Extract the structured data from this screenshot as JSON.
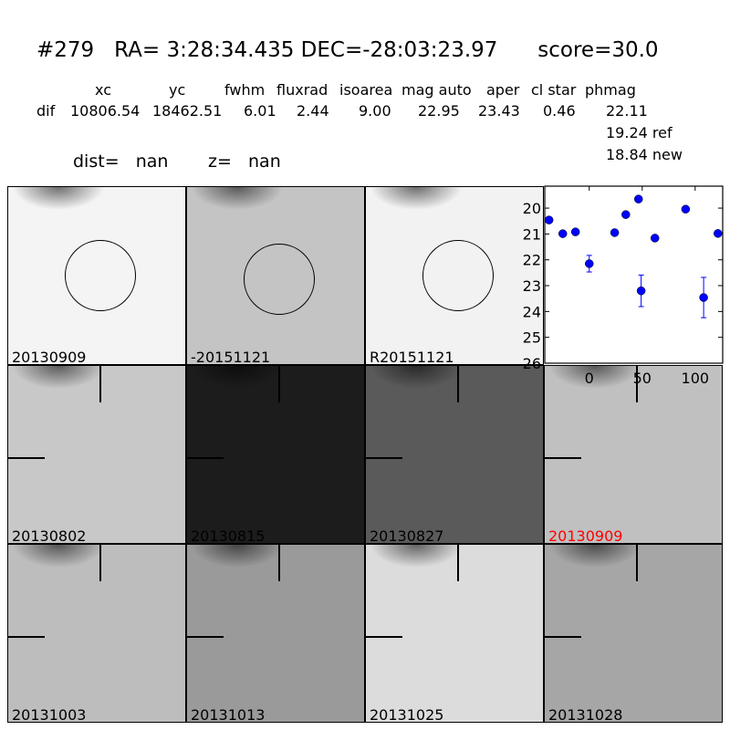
{
  "header": {
    "title": "#279   RA= 3:28:34.435 DEC=-28:03:23.97      score=30.0",
    "columns": [
      "xc",
      "yc",
      "fwhm",
      "fluxrad",
      "isoarea",
      "mag auto",
      "aper",
      "cl star",
      "phmag"
    ],
    "row_label": "dif",
    "values": [
      "10806.54",
      "18462.51",
      "6.01",
      "2.44",
      "9.00",
      "22.95",
      "23.43",
      "0.46",
      "22.11"
    ],
    "ref": "19.24 ref",
    "new": "18.84 new",
    "dist": "dist=   nan",
    "z": "z=   nan"
  },
  "stamps": [
    {
      "label": "20130909",
      "bg": "#f4f4f4",
      "circle": true
    },
    {
      "label": "-20151121",
      "bg": "#c4c4c4",
      "circle": true
    },
    {
      "label": "R20151121",
      "bg": "#f2f2f2",
      "circle": true
    },
    {
      "label": "20130802",
      "bg": "#c8c8c8",
      "crosshair": true
    },
    {
      "label": "20130815",
      "bg": "#1c1c1c",
      "crosshair": true
    },
    {
      "label": "20130827",
      "bg": "#5a5a5a",
      "crosshair": true
    },
    {
      "label": "20130909",
      "bg": "#c0c0c0",
      "crosshair": true,
      "label_color": "#ff0000"
    },
    {
      "label": "20131003",
      "bg": "#bdbdbd",
      "crosshair": true
    },
    {
      "label": "20131013",
      "bg": "#9a9a9a",
      "crosshair": true
    },
    {
      "label": "20131025",
      "bg": "#dcdcdc",
      "crosshair": true
    },
    {
      "label": "20131028",
      "bg": "#a6a6a6",
      "crosshair": true
    }
  ],
  "chart_data": {
    "type": "scatter",
    "xlim": [
      -42,
      126
    ],
    "ylim": [
      26,
      19.15
    ],
    "y_inverted": true,
    "xticks": [
      "0",
      "50",
      "100"
    ],
    "yticks": [
      "20",
      "21",
      "22",
      "23",
      "24",
      "25",
      "26"
    ],
    "color": "#0000ff",
    "points": [
      {
        "x": -38,
        "y": 20.46,
        "err": 0.05
      },
      {
        "x": -25,
        "y": 20.99,
        "err": 0.05
      },
      {
        "x": -13,
        "y": 20.92,
        "err": 0.05
      },
      {
        "x": 0,
        "y": 22.15,
        "err": 0.32
      },
      {
        "x": 24,
        "y": 20.95,
        "err": 0.05
      },
      {
        "x": 34.5,
        "y": 20.25,
        "err": 0.04
      },
      {
        "x": 46.5,
        "y": 19.65,
        "err": 0.04
      },
      {
        "x": 49,
        "y": 23.2,
        "err": 0.61
      },
      {
        "x": 62,
        "y": 21.16,
        "err": 0.1
      },
      {
        "x": 91,
        "y": 20.04,
        "err": 0.04
      },
      {
        "x": 108,
        "y": 23.46,
        "err": 0.78
      },
      {
        "x": 121.5,
        "y": 20.98,
        "err": 0.1
      }
    ]
  }
}
